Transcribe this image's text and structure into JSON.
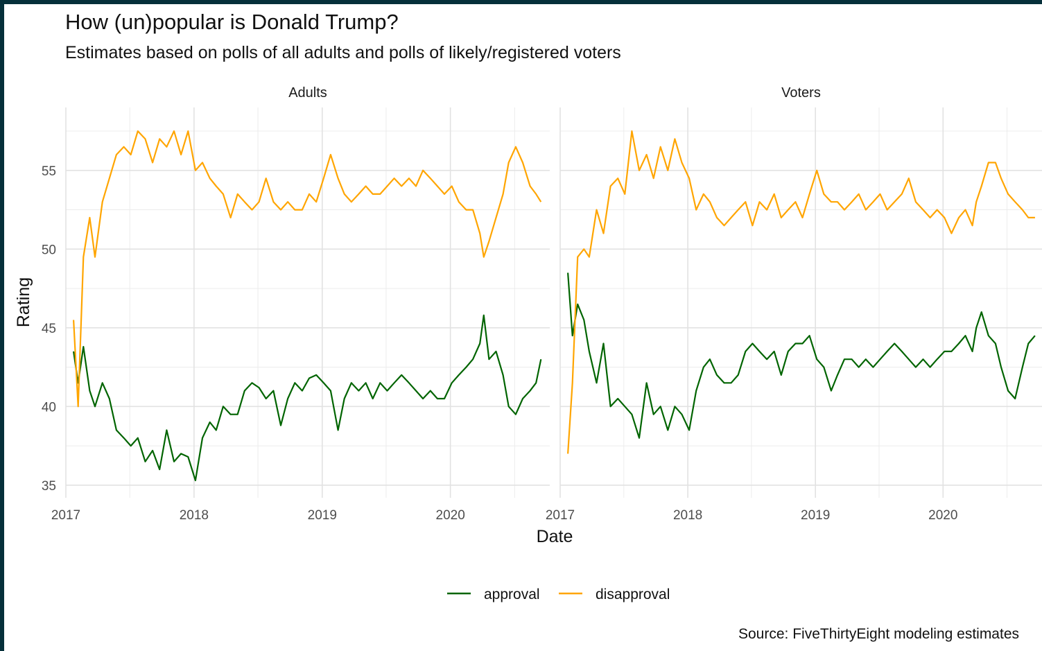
{
  "header": {
    "title": "How (un)popular is Donald Trump?",
    "subtitle": "Estimates based on polls of all adults and polls of likely/registered voters"
  },
  "caption": "Source: FiveThirtyEight modeling estimates",
  "chart_data": {
    "type": "line",
    "xlabel": "Date",
    "ylabel": "Rating",
    "x_ticks": [
      "2017",
      "2018",
      "2019",
      "2020"
    ],
    "y_ticks": [
      "35",
      "40",
      "45",
      "50",
      "55"
    ],
    "xlim": [
      "2017-01-01",
      "2020-10-10"
    ],
    "ylim": [
      34.2,
      59.0
    ],
    "grid": true,
    "legend_position": "bottom",
    "colors": {
      "approval": "#006400",
      "disapproval": "#FFA500"
    },
    "facets": [
      {
        "name": "Adults",
        "series": [
          {
            "name": "approval",
            "x": [
              "2017-01-23",
              "2017-02-05",
              "2017-02-20",
              "2017-03-10",
              "2017-03-25",
              "2017-04-15",
              "2017-05-05",
              "2017-05-25",
              "2017-06-15",
              "2017-07-05",
              "2017-07-25",
              "2017-08-15",
              "2017-09-05",
              "2017-09-25",
              "2017-10-15",
              "2017-11-05",
              "2017-11-25",
              "2017-12-15",
              "2018-01-05",
              "2018-01-25",
              "2018-02-15",
              "2018-03-05",
              "2018-03-25",
              "2018-04-15",
              "2018-05-05",
              "2018-05-25",
              "2018-06-15",
              "2018-07-05",
              "2018-07-25",
              "2018-08-15",
              "2018-09-05",
              "2018-09-25",
              "2018-10-15",
              "2018-11-05",
              "2018-11-25",
              "2018-12-15",
              "2019-01-05",
              "2019-01-25",
              "2019-02-15",
              "2019-03-05",
              "2019-03-25",
              "2019-04-15",
              "2019-05-05",
              "2019-05-25",
              "2019-06-15",
              "2019-07-05",
              "2019-07-25",
              "2019-08-15",
              "2019-09-05",
              "2019-09-25",
              "2019-10-15",
              "2019-11-05",
              "2019-11-25",
              "2019-12-15",
              "2020-01-05",
              "2020-01-25",
              "2020-02-15",
              "2020-03-05",
              "2020-03-25",
              "2020-04-05",
              "2020-04-20",
              "2020-05-10",
              "2020-05-30",
              "2020-06-15",
              "2020-07-05",
              "2020-07-25",
              "2020-08-15",
              "2020-09-01",
              "2020-09-15"
            ],
            "values": [
              43.5,
              41.5,
              43.8,
              41.0,
              40.0,
              41.5,
              40.5,
              38.5,
              38.0,
              37.5,
              38.0,
              36.5,
              37.2,
              36.0,
              38.5,
              36.5,
              37.0,
              36.8,
              35.3,
              38.0,
              39.0,
              38.5,
              40.0,
              39.5,
              39.5,
              41.0,
              41.5,
              41.2,
              40.5,
              41.0,
              38.8,
              40.5,
              41.5,
              41.0,
              41.8,
              42.0,
              41.5,
              41.0,
              38.5,
              40.5,
              41.5,
              41.0,
              41.5,
              40.5,
              41.5,
              41.0,
              41.5,
              42.0,
              41.5,
              41.0,
              40.5,
              41.0,
              40.5,
              40.5,
              41.5,
              42.0,
              42.5,
              43.0,
              44.0,
              45.8,
              43.0,
              43.5,
              42.0,
              40.0,
              39.5,
              40.5,
              41.0,
              41.5,
              43.0
            ]
          },
          {
            "name": "disapproval",
            "x": [
              "2017-01-23",
              "2017-02-05",
              "2017-02-20",
              "2017-03-10",
              "2017-03-25",
              "2017-04-15",
              "2017-05-05",
              "2017-05-25",
              "2017-06-15",
              "2017-07-05",
              "2017-07-25",
              "2017-08-15",
              "2017-09-05",
              "2017-09-25",
              "2017-10-15",
              "2017-11-05",
              "2017-11-25",
              "2017-12-15",
              "2018-01-05",
              "2018-01-25",
              "2018-02-15",
              "2018-03-05",
              "2018-03-25",
              "2018-04-15",
              "2018-05-05",
              "2018-05-25",
              "2018-06-15",
              "2018-07-05",
              "2018-07-25",
              "2018-08-15",
              "2018-09-05",
              "2018-09-25",
              "2018-10-15",
              "2018-11-05",
              "2018-11-25",
              "2018-12-15",
              "2019-01-05",
              "2019-01-25",
              "2019-02-15",
              "2019-03-05",
              "2019-03-25",
              "2019-04-15",
              "2019-05-05",
              "2019-05-25",
              "2019-06-15",
              "2019-07-05",
              "2019-07-25",
              "2019-08-15",
              "2019-09-05",
              "2019-09-25",
              "2019-10-15",
              "2019-11-05",
              "2019-11-25",
              "2019-12-15",
              "2020-01-05",
              "2020-01-25",
              "2020-02-15",
              "2020-03-05",
              "2020-03-25",
              "2020-04-05",
              "2020-04-20",
              "2020-05-10",
              "2020-05-30",
              "2020-06-15",
              "2020-07-05",
              "2020-07-25",
              "2020-08-15",
              "2020-09-01",
              "2020-09-15"
            ],
            "values": [
              45.5,
              40.0,
              49.5,
              52.0,
              49.5,
              53.0,
              54.5,
              56.0,
              56.5,
              56.0,
              57.5,
              57.0,
              55.5,
              57.0,
              56.5,
              57.5,
              56.0,
              57.5,
              55.0,
              55.5,
              54.5,
              54.0,
              53.5,
              52.0,
              53.5,
              53.0,
              52.5,
              53.0,
              54.5,
              53.0,
              52.5,
              53.0,
              52.5,
              52.5,
              53.5,
              53.0,
              54.5,
              56.0,
              54.5,
              53.5,
              53.0,
              53.5,
              54.0,
              53.5,
              53.5,
              54.0,
              54.5,
              54.0,
              54.5,
              54.0,
              55.0,
              54.5,
              54.0,
              53.5,
              54.0,
              53.0,
              52.5,
              52.5,
              51.0,
              49.5,
              50.5,
              52.0,
              53.5,
              55.5,
              56.5,
              55.5,
              54.0,
              53.5,
              53.0
            ]
          }
        ]
      },
      {
        "name": "Voters",
        "series": [
          {
            "name": "approval",
            "x": [
              "2017-01-23",
              "2017-02-05",
              "2017-02-20",
              "2017-03-10",
              "2017-03-25",
              "2017-04-15",
              "2017-05-05",
              "2017-05-25",
              "2017-06-15",
              "2017-07-05",
              "2017-07-25",
              "2017-08-15",
              "2017-09-05",
              "2017-09-25",
              "2017-10-15",
              "2017-11-05",
              "2017-11-25",
              "2017-12-15",
              "2018-01-05",
              "2018-01-25",
              "2018-02-15",
              "2018-03-05",
              "2018-03-25",
              "2018-04-15",
              "2018-05-05",
              "2018-05-25",
              "2018-06-15",
              "2018-07-05",
              "2018-07-25",
              "2018-08-15",
              "2018-09-05",
              "2018-09-25",
              "2018-10-15",
              "2018-11-05",
              "2018-11-25",
              "2018-12-15",
              "2019-01-05",
              "2019-01-25",
              "2019-02-15",
              "2019-03-05",
              "2019-03-25",
              "2019-04-15",
              "2019-05-05",
              "2019-05-25",
              "2019-06-15",
              "2019-07-05",
              "2019-07-25",
              "2019-08-15",
              "2019-09-05",
              "2019-09-25",
              "2019-10-15",
              "2019-11-05",
              "2019-11-25",
              "2019-12-15",
              "2020-01-05",
              "2020-01-25",
              "2020-02-15",
              "2020-03-05",
              "2020-03-25",
              "2020-04-05",
              "2020-04-20",
              "2020-05-10",
              "2020-05-30",
              "2020-06-15",
              "2020-07-05",
              "2020-07-25",
              "2020-08-15",
              "2020-09-01",
              "2020-09-20"
            ],
            "values": [
              48.5,
              44.5,
              46.5,
              45.5,
              43.5,
              41.5,
              44.0,
              40.0,
              40.5,
              40.0,
              39.5,
              38.0,
              41.5,
              39.5,
              40.0,
              38.5,
              40.0,
              39.5,
              38.5,
              41.0,
              42.5,
              43.0,
              42.0,
              41.5,
              41.5,
              42.0,
              43.5,
              44.0,
              43.5,
              43.0,
              43.5,
              42.0,
              43.5,
              44.0,
              44.0,
              44.5,
              43.0,
              42.5,
              41.0,
              42.0,
              43.0,
              43.0,
              42.5,
              43.0,
              42.5,
              43.0,
              43.5,
              44.0,
              43.5,
              43.0,
              42.5,
              43.0,
              42.5,
              43.0,
              43.5,
              43.5,
              44.0,
              44.5,
              43.5,
              45.0,
              46.0,
              44.5,
              44.0,
              42.5,
              41.0,
              40.5,
              42.5,
              44.0,
              44.5
            ]
          },
          {
            "name": "disapproval",
            "x": [
              "2017-01-23",
              "2017-02-05",
              "2017-02-20",
              "2017-03-10",
              "2017-03-25",
              "2017-04-15",
              "2017-05-05",
              "2017-05-25",
              "2017-06-15",
              "2017-07-05",
              "2017-07-25",
              "2017-08-15",
              "2017-09-05",
              "2017-09-25",
              "2017-10-15",
              "2017-11-05",
              "2017-11-25",
              "2017-12-15",
              "2018-01-05",
              "2018-01-25",
              "2018-02-15",
              "2018-03-05",
              "2018-03-25",
              "2018-04-15",
              "2018-05-05",
              "2018-05-25",
              "2018-06-15",
              "2018-07-05",
              "2018-07-25",
              "2018-08-15",
              "2018-09-05",
              "2018-09-25",
              "2018-10-15",
              "2018-11-05",
              "2018-11-25",
              "2018-12-15",
              "2019-01-05",
              "2019-01-25",
              "2019-02-15",
              "2019-03-05",
              "2019-03-25",
              "2019-04-15",
              "2019-05-05",
              "2019-05-25",
              "2019-06-15",
              "2019-07-05",
              "2019-07-25",
              "2019-08-15",
              "2019-09-05",
              "2019-09-25",
              "2019-10-15",
              "2019-11-05",
              "2019-11-25",
              "2019-12-15",
              "2020-01-05",
              "2020-01-25",
              "2020-02-15",
              "2020-03-05",
              "2020-03-25",
              "2020-04-05",
              "2020-04-20",
              "2020-05-10",
              "2020-05-30",
              "2020-06-15",
              "2020-07-05",
              "2020-07-25",
              "2020-08-15",
              "2020-09-01",
              "2020-09-20"
            ],
            "values": [
              37.0,
              41.5,
              49.5,
              50.0,
              49.5,
              52.5,
              51.0,
              54.0,
              54.5,
              53.5,
              57.5,
              55.0,
              56.0,
              54.5,
              56.5,
              55.0,
              57.0,
              55.5,
              54.5,
              52.5,
              53.5,
              53.0,
              52.0,
              51.5,
              52.0,
              52.5,
              53.0,
              51.5,
              53.0,
              52.5,
              53.5,
              52.0,
              52.5,
              53.0,
              52.0,
              53.5,
              55.0,
              53.5,
              53.0,
              53.0,
              52.5,
              53.0,
              53.5,
              52.5,
              53.0,
              53.5,
              52.5,
              53.0,
              53.5,
              54.5,
              53.0,
              52.5,
              52.0,
              52.5,
              52.0,
              51.0,
              52.0,
              52.5,
              51.5,
              53.0,
              54.0,
              55.5,
              55.5,
              54.5,
              53.5,
              53.0,
              52.5,
              52.0,
              52.0
            ]
          }
        ]
      }
    ]
  }
}
